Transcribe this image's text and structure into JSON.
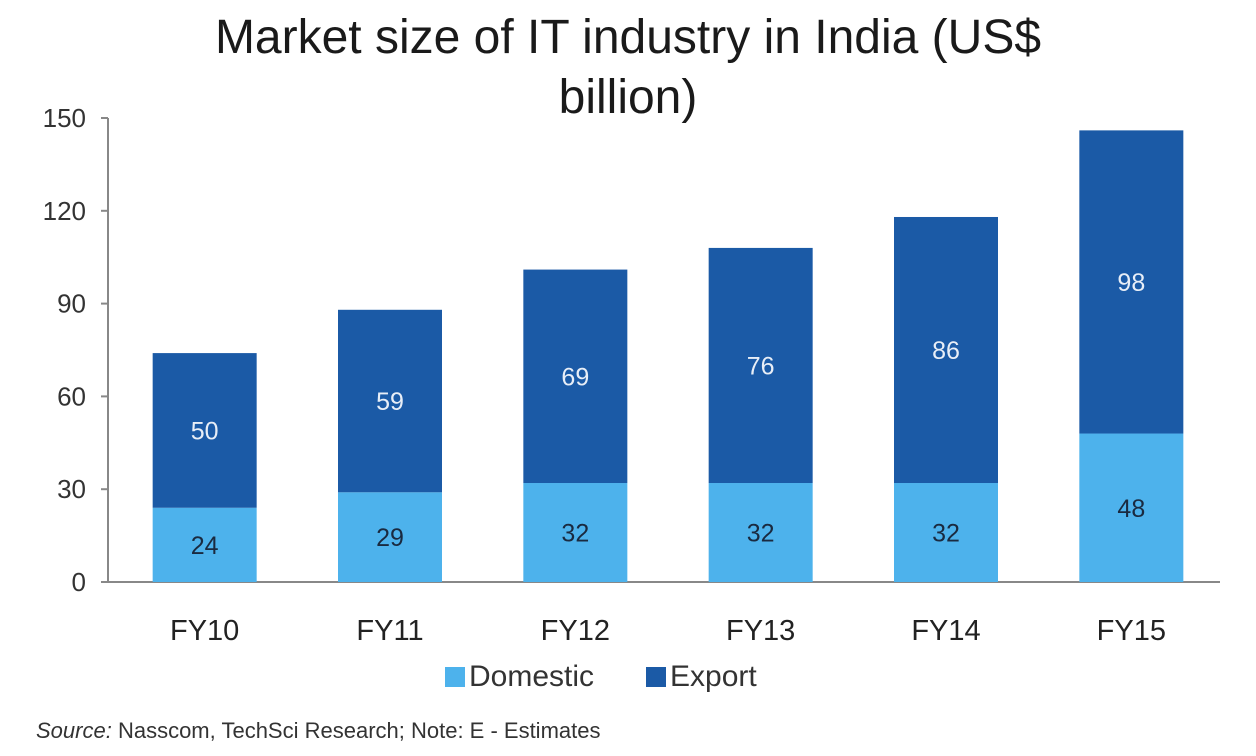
{
  "chart_data": {
    "type": "bar",
    "stacked": true,
    "title": "Market size of IT industry in India (US$ billion)",
    "title_lines": [
      "Market size of IT industry in India (US$",
      "billion)"
    ],
    "categories": [
      "FY10",
      "FY11",
      "FY12",
      "FY13",
      "FY14",
      "FY15"
    ],
    "series": [
      {
        "name": "Domestic",
        "color": "#4db2ec",
        "values": [
          24,
          29,
          32,
          32,
          32,
          48
        ]
      },
      {
        "name": "Export",
        "color": "#1b5aa6",
        "values": [
          50,
          59,
          69,
          76,
          86,
          98
        ]
      }
    ],
    "ylim": [
      0,
      150
    ],
    "yticks": [
      0,
      30,
      60,
      90,
      120,
      150
    ],
    "xlabel": "",
    "ylabel": "",
    "grid": false,
    "legend_position": "bottom",
    "source_label": "Source:",
    "source_text": " Nasscom, TechSci Research;  Note: E - Estimates"
  }
}
